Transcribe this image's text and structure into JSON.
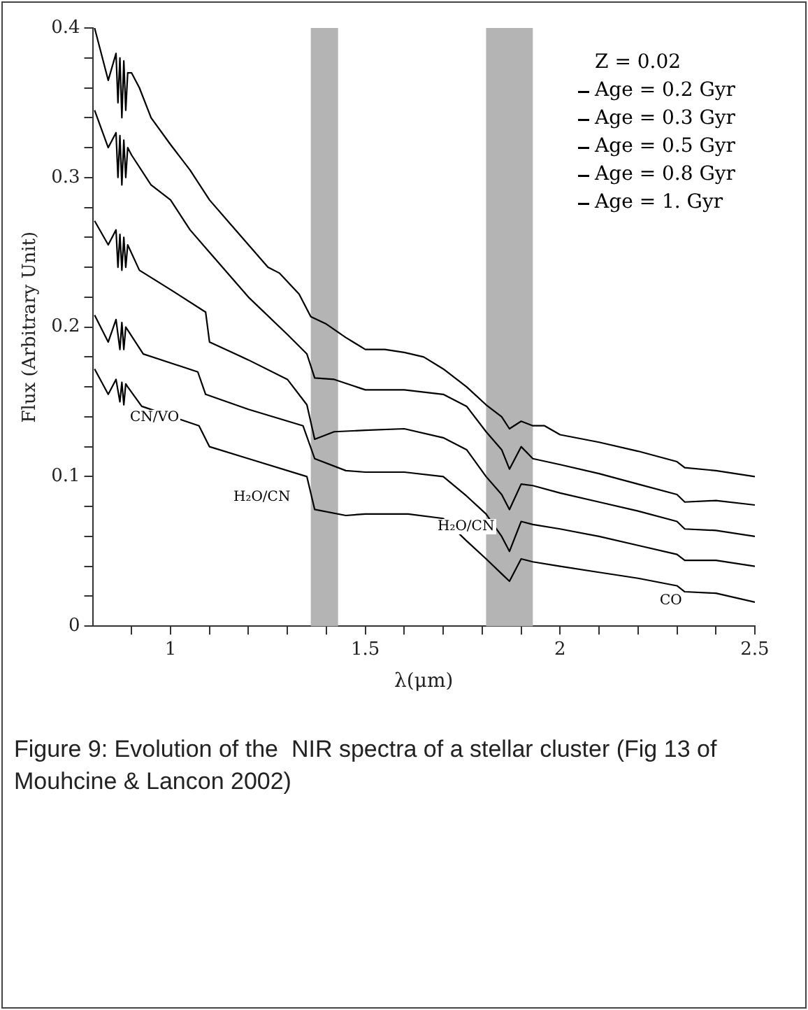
{
  "chart_data": {
    "type": "line",
    "xlabel": "λ(μm)",
    "ylabel": "Flux (Arbitrary Unit)",
    "legend_title": "Z = 0.02",
    "legend": "top right",
    "marker": "none",
    "line_style": "solid",
    "grid": false,
    "xlim": [
      0.8,
      2.5
    ],
    "ylim": [
      0,
      0.4
    ],
    "xticks": [
      {
        "value": 0.9,
        "label": null
      },
      1,
      {
        "value": 1.1,
        "label": null
      },
      {
        "value": 1.2,
        "label": null
      },
      {
        "value": 1.3,
        "label": null
      },
      {
        "value": 1.4,
        "label": null
      },
      1.5,
      {
        "value": 1.6,
        "label": null
      },
      {
        "value": 1.7,
        "label": null
      },
      {
        "value": 1.8,
        "label": null
      },
      {
        "value": 1.9,
        "label": null
      },
      2,
      {
        "value": 2.1,
        "label": null
      },
      {
        "value": 2.2,
        "label": null
      },
      {
        "value": 2.3,
        "label": null
      },
      {
        "value": 2.4,
        "label": null
      },
      2.5
    ],
    "yticks": [
      0,
      {
        "value": 0.02,
        "label": null
      },
      {
        "value": 0.04,
        "label": null
      },
      {
        "value": 0.06,
        "label": null
      },
      {
        "value": 0.08,
        "label": null
      },
      0.1,
      {
        "value": 0.12,
        "label": null
      },
      {
        "value": 0.14,
        "label": null
      },
      {
        "value": 0.16,
        "label": null
      },
      {
        "value": 0.18,
        "label": null
      },
      0.2,
      {
        "value": 0.22,
        "label": null
      },
      {
        "value": 0.24,
        "label": null
      },
      {
        "value": 0.26,
        "label": null
      },
      {
        "value": 0.28,
        "label": null
      },
      0.3,
      {
        "value": 0.32,
        "label": null
      },
      {
        "value": 0.34,
        "label": null
      },
      {
        "value": 0.36,
        "label": null
      },
      {
        "value": 0.38,
        "label": null
      },
      0.4
    ],
    "bands": [
      {
        "axis": "x",
        "from": 1.36,
        "to": 1.43
      },
      {
        "axis": "x",
        "from": 1.81,
        "to": 1.93
      }
    ],
    "annotations": [
      "CN/VO",
      "H₂O/CN",
      "H₂O/CN",
      "CO",
      "Figure 9: Evolution of the  NIR spectra of a stellar cluster (Fig 13 of Mouhcine & Lancon 2002)"
    ],
    "series": [
      {
        "name": "Age = 0.2 Gyr",
        "color": "#000000",
        "x": [
          0.805,
          0.84,
          0.86,
          0.865,
          0.87,
          0.875,
          0.88,
          0.885,
          0.89,
          0.9,
          0.92,
          0.95,
          1.0,
          1.05,
          1.1,
          1.15,
          1.2,
          1.25,
          1.28,
          1.33,
          1.36,
          1.4,
          1.45,
          1.5,
          1.55,
          1.6,
          1.65,
          1.7,
          1.76,
          1.81,
          1.85,
          1.87,
          1.9,
          1.93,
          1.96,
          2.0,
          2.1,
          2.2,
          2.3,
          2.32,
          2.4,
          2.5
        ],
        "values": [
          0.4,
          0.365,
          0.383,
          0.35,
          0.38,
          0.34,
          0.378,
          0.345,
          0.37,
          0.37,
          0.36,
          0.34,
          0.322,
          0.305,
          0.285,
          0.27,
          0.255,
          0.24,
          0.236,
          0.222,
          0.207,
          0.202,
          0.193,
          0.185,
          0.185,
          0.183,
          0.18,
          0.172,
          0.16,
          0.148,
          0.14,
          0.132,
          0.137,
          0.134,
          0.134,
          0.128,
          0.123,
          0.117,
          0.11,
          0.106,
          0.104,
          0.1
        ]
      },
      {
        "name": "Age = 0.3 Gyr",
        "color": "#000000",
        "x": [
          0.805,
          0.84,
          0.86,
          0.865,
          0.87,
          0.875,
          0.88,
          0.885,
          0.89,
          0.9,
          0.95,
          1.0,
          1.05,
          1.1,
          1.2,
          1.3,
          1.35,
          1.37,
          1.42,
          1.5,
          1.6,
          1.7,
          1.76,
          1.81,
          1.85,
          1.87,
          1.9,
          1.93,
          2.0,
          2.1,
          2.2,
          2.3,
          2.32,
          2.4,
          2.5
        ],
        "values": [
          0.345,
          0.32,
          0.33,
          0.3,
          0.328,
          0.295,
          0.325,
          0.3,
          0.32,
          0.315,
          0.295,
          0.285,
          0.265,
          0.25,
          0.22,
          0.195,
          0.182,
          0.166,
          0.165,
          0.158,
          0.158,
          0.155,
          0.147,
          0.13,
          0.118,
          0.105,
          0.12,
          0.112,
          0.108,
          0.102,
          0.095,
          0.088,
          0.083,
          0.084,
          0.081
        ]
      },
      {
        "name": "Age = 0.5 Gyr",
        "color": "#000000",
        "x": [
          0.805,
          0.84,
          0.86,
          0.865,
          0.87,
          0.875,
          0.88,
          0.885,
          0.89,
          0.92,
          1.0,
          1.09,
          1.1,
          1.2,
          1.3,
          1.35,
          1.37,
          1.42,
          1.5,
          1.6,
          1.7,
          1.76,
          1.81,
          1.85,
          1.87,
          1.9,
          1.93,
          2.0,
          2.1,
          2.2,
          2.3,
          2.32,
          2.4,
          2.5
        ],
        "values": [
          0.271,
          0.255,
          0.265,
          0.24,
          0.262,
          0.238,
          0.26,
          0.24,
          0.255,
          0.238,
          0.225,
          0.21,
          0.19,
          0.178,
          0.165,
          0.148,
          0.125,
          0.13,
          0.131,
          0.132,
          0.126,
          0.118,
          0.1,
          0.088,
          0.078,
          0.095,
          0.094,
          0.089,
          0.083,
          0.077,
          0.07,
          0.065,
          0.064,
          0.06
        ]
      },
      {
        "name": "Age = 0.8 Gyr",
        "color": "#000000",
        "x": [
          0.805,
          0.84,
          0.86,
          0.87,
          0.875,
          0.88,
          0.885,
          0.89,
          0.93,
          1.07,
          1.09,
          1.2,
          1.34,
          1.37,
          1.45,
          1.5,
          1.6,
          1.7,
          1.76,
          1.81,
          1.85,
          1.87,
          1.9,
          1.93,
          2.0,
          2.1,
          2.2,
          2.3,
          2.32,
          2.4,
          2.5
        ],
        "values": [
          0.208,
          0.19,
          0.205,
          0.185,
          0.203,
          0.185,
          0.2,
          0.198,
          0.182,
          0.17,
          0.155,
          0.145,
          0.134,
          0.112,
          0.104,
          0.103,
          0.103,
          0.1,
          0.087,
          0.075,
          0.06,
          0.05,
          0.07,
          0.068,
          0.065,
          0.06,
          0.054,
          0.048,
          0.044,
          0.044,
          0.04
        ]
      },
      {
        "name": "Age = 1. Gyr",
        "color": "#000000",
        "x": [
          0.805,
          0.84,
          0.86,
          0.87,
          0.875,
          0.88,
          0.885,
          0.89,
          0.926,
          1.073,
          1.1,
          1.2,
          1.35,
          1.37,
          1.45,
          1.5,
          1.61,
          1.7,
          1.76,
          1.81,
          1.85,
          1.87,
          1.9,
          1.93,
          2.0,
          2.1,
          2.2,
          2.3,
          2.32,
          2.4,
          2.5
        ],
        "values": [
          0.172,
          0.155,
          0.165,
          0.15,
          0.163,
          0.148,
          0.162,
          0.16,
          0.147,
          0.134,
          0.12,
          0.112,
          0.1,
          0.078,
          0.074,
          0.075,
          0.075,
          0.072,
          0.057,
          0.045,
          0.035,
          0.03,
          0.045,
          0.043,
          0.04,
          0.036,
          0.032,
          0.027,
          0.023,
          0.022,
          0.016
        ]
      }
    ]
  }
}
